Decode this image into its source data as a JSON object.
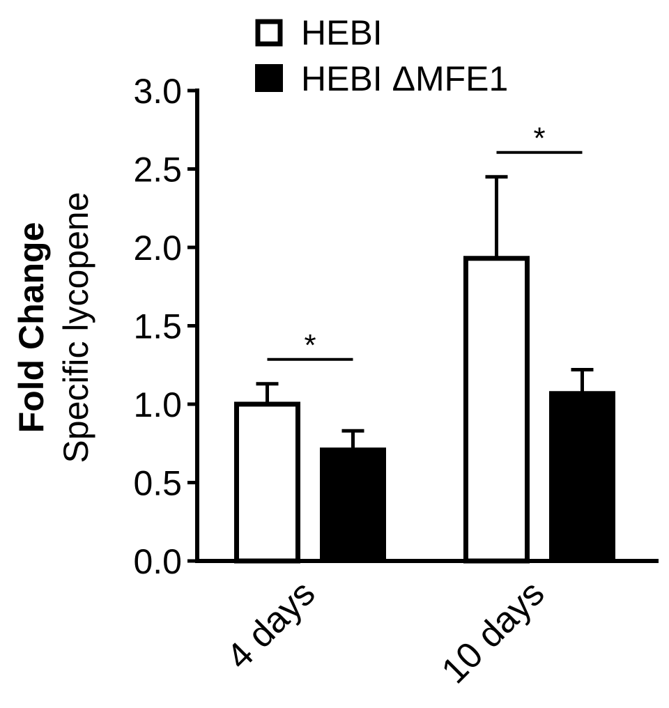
{
  "chart_data": {
    "type": "bar",
    "categories": [
      "4 days",
      "10 days"
    ],
    "series": [
      {
        "name": "HEBI",
        "values": [
          1.0,
          1.93
        ],
        "errors": [
          0.13,
          0.52
        ],
        "fill": "#ffffff"
      },
      {
        "name": "HEBI ΔMFE1",
        "values": [
          0.71,
          1.07
        ],
        "errors": [
          0.12,
          0.15
        ],
        "fill": "#000000"
      }
    ],
    "ylabel_bold": "Fold Change",
    "ylabel": "Specific lycopene",
    "ylim": [
      0,
      3.0
    ],
    "yticks": [
      "0.0",
      "0.5",
      "1.0",
      "1.5",
      "2.0",
      "2.5",
      "3.0"
    ],
    "significance": [
      {
        "category": "4 days",
        "label": "*"
      },
      {
        "category": "10 days",
        "label": "*"
      }
    ],
    "legend_position": "top",
    "grid": false
  }
}
